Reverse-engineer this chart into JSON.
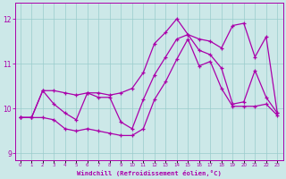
{
  "xlabel": "Windchill (Refroidissement éolien,°C)",
  "hours": [
    0,
    1,
    2,
    3,
    4,
    5,
    6,
    7,
    8,
    9,
    10,
    11,
    12,
    13,
    14,
    15,
    16,
    17,
    18,
    19,
    20,
    21,
    22,
    23
  ],
  "line_upper": [
    9.8,
    9.8,
    10.4,
    10.4,
    10.35,
    10.3,
    10.35,
    10.35,
    10.3,
    10.35,
    10.45,
    10.8,
    11.45,
    11.7,
    12.0,
    11.65,
    11.55,
    11.5,
    11.35,
    11.85,
    11.9,
    11.15,
    11.6,
    9.9
  ],
  "line_mid": [
    9.8,
    9.8,
    10.4,
    10.1,
    9.9,
    9.75,
    10.35,
    10.25,
    10.25,
    9.7,
    9.55,
    10.2,
    10.75,
    11.15,
    11.55,
    11.65,
    11.3,
    11.2,
    10.9,
    10.1,
    10.15,
    10.85,
    10.25,
    9.9
  ],
  "line_lower": [
    9.8,
    9.8,
    9.8,
    9.75,
    9.55,
    9.5,
    9.55,
    9.5,
    9.45,
    9.4,
    9.4,
    9.55,
    10.2,
    10.6,
    11.1,
    11.55,
    10.95,
    11.05,
    10.45,
    10.05,
    10.05,
    10.05,
    10.1,
    9.85
  ],
  "color": "#aa00aa",
  "bg_color": "#cce8e8",
  "grid_color": "#99cccc",
  "ylim": [
    8.85,
    12.35
  ],
  "yticks": [
    9,
    10,
    11,
    12
  ],
  "xlim": [
    -0.5,
    23.5
  ],
  "figwidth": 3.2,
  "figheight": 2.0,
  "dpi": 100
}
